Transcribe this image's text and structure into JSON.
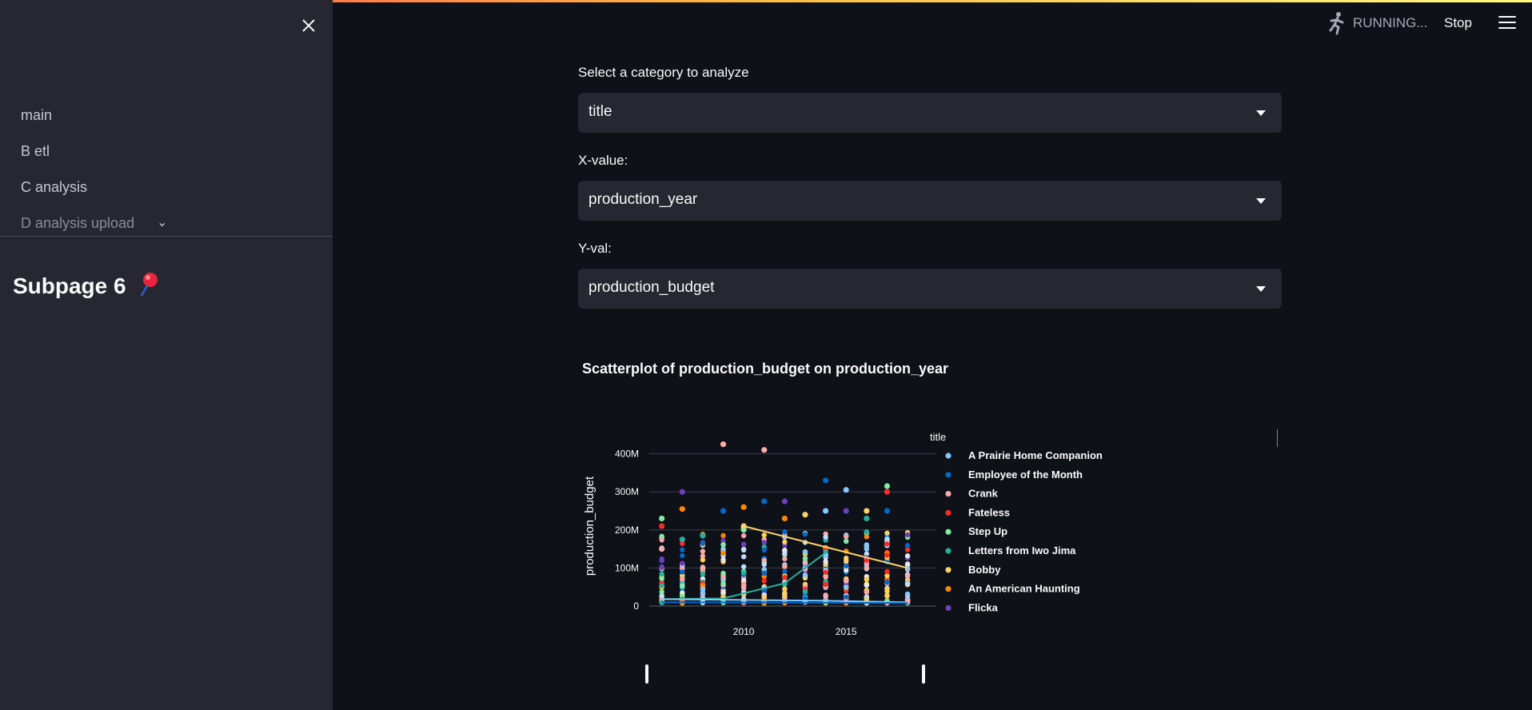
{
  "sidebar": {
    "items": [
      {
        "label": "main"
      },
      {
        "label": "B etl"
      },
      {
        "label": "C analysis"
      },
      {
        "label": "D analysis upload"
      }
    ],
    "title": "Subpage 6"
  },
  "header": {
    "status": "RUNNING...",
    "stop_label": "Stop"
  },
  "controls": {
    "category_label": "Select a category to analyze",
    "category_value": "title",
    "x_label": "X-value:",
    "x_value": "production_year",
    "y_label": "Y-val:",
    "y_value": "production_budget"
  },
  "chart_data": {
    "type": "scatter",
    "title": "Scatterplot of production_budget on production_year",
    "ylabel": "production_budget",
    "xlabel": "",
    "x_ticks": [
      "2010",
      "2015"
    ],
    "y_ticks": [
      "0",
      "100M",
      "200M",
      "300M",
      "400M"
    ],
    "xlim": [
      2005.7,
      2018.7
    ],
    "ylim": [
      0,
      420000000
    ],
    "legend_title": "title",
    "legend_placement": "right",
    "series": [
      {
        "name": "A Prairie Home Companion",
        "color": "#83c9ff",
        "x": [
          2010,
          2014,
          2015
        ],
        "y": [
          205000000,
          250000000,
          305000000
        ]
      },
      {
        "name": "Employee of the Month",
        "color": "#0068c9",
        "x": [
          2009,
          2011,
          2014,
          2017
        ],
        "y": [
          250000000,
          275000000,
          330000000,
          250000000
        ]
      },
      {
        "name": "Crank",
        "color": "#ffabab",
        "x": [
          2006,
          2009,
          2011
        ],
        "y": [
          150000000,
          425000000,
          410000000
        ]
      },
      {
        "name": "Fateless",
        "color": "#ff2b2b",
        "x": [
          2006,
          2017
        ],
        "y": [
          210000000,
          300000000
        ]
      },
      {
        "name": "Step Up",
        "color": "#7defa1",
        "x": [
          2006,
          2010,
          2017
        ],
        "y": [
          230000000,
          200000000,
          315000000
        ]
      },
      {
        "name": "Letters from Iwo Jima",
        "color": "#29b09d",
        "x": [
          2007,
          2008,
          2016
        ],
        "y": [
          175000000,
          185000000,
          230000000
        ]
      },
      {
        "name": "Bobby",
        "color": "#ffd16a",
        "x": [
          2010,
          2013,
          2016
        ],
        "y": [
          210000000,
          240000000,
          250000000
        ]
      },
      {
        "name": "An American Haunting",
        "color": "#ff8700",
        "x": [
          2007,
          2010,
          2012
        ],
        "y": [
          255000000,
          260000000,
          230000000
        ]
      },
      {
        "name": "Flicka",
        "color": "#6d3fc0",
        "x": [
          2007,
          2012,
          2015
        ],
        "y": [
          300000000,
          275000000,
          250000000
        ]
      }
    ]
  }
}
